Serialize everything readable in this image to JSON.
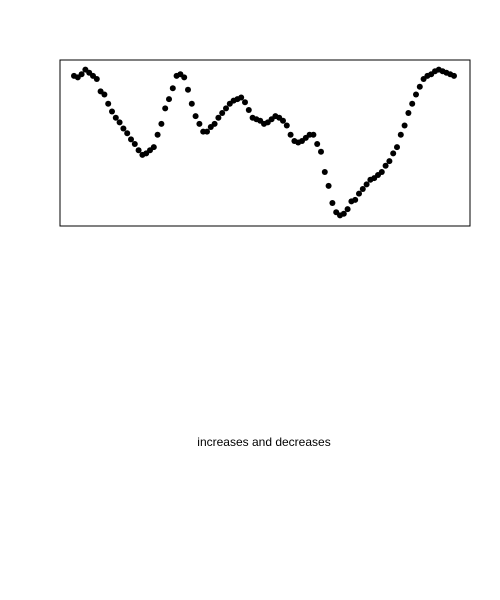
{
  "chart_data": {
    "type": "scatter",
    "title": "",
    "xlabel": "",
    "ylabel": "",
    "grid": false,
    "axes_ticks": false,
    "marker_color": "#000000",
    "frame_color": "#000000",
    "xlim": [
      0,
      100
    ],
    "ylim": [
      0,
      1
    ],
    "series": [
      {
        "x": [
          0,
          1,
          2,
          3,
          4,
          5,
          6,
          7,
          8,
          9,
          10,
          11,
          12,
          13,
          14,
          15,
          16,
          17,
          18,
          19,
          20,
          21,
          22,
          23,
          24,
          25,
          26,
          27,
          28,
          29,
          30,
          31,
          32,
          33,
          34,
          35,
          36,
          37,
          38,
          39,
          40,
          41,
          42,
          43,
          44,
          45,
          46,
          47,
          48,
          49,
          50,
          51,
          52,
          53,
          54,
          55,
          56,
          57,
          58,
          59,
          60,
          61,
          62,
          63,
          64,
          65,
          66,
          67,
          68,
          69,
          70,
          71,
          72,
          73,
          74,
          75,
          76,
          77,
          78,
          79,
          80,
          81,
          82,
          83,
          84,
          85,
          86,
          87,
          88,
          89,
          90,
          91,
          92,
          93,
          94,
          95,
          96,
          97,
          98,
          99,
          100
        ],
        "y": [
          0.93,
          0.92,
          0.94,
          0.97,
          0.95,
          0.93,
          0.91,
          0.83,
          0.81,
          0.75,
          0.7,
          0.66,
          0.63,
          0.59,
          0.56,
          0.52,
          0.49,
          0.45,
          0.42,
          0.43,
          0.45,
          0.47,
          0.55,
          0.62,
          0.72,
          0.78,
          0.85,
          0.93,
          0.94,
          0.92,
          0.84,
          0.75,
          0.67,
          0.62,
          0.57,
          0.57,
          0.6,
          0.62,
          0.66,
          0.69,
          0.72,
          0.75,
          0.77,
          0.78,
          0.79,
          0.76,
          0.71,
          0.66,
          0.65,
          0.64,
          0.62,
          0.63,
          0.65,
          0.67,
          0.66,
          0.64,
          0.61,
          0.55,
          0.51,
          0.5,
          0.51,
          0.53,
          0.55,
          0.55,
          0.49,
          0.44,
          0.31,
          0.22,
          0.11,
          0.05,
          0.03,
          0.04,
          0.07,
          0.12,
          0.13,
          0.17,
          0.2,
          0.23,
          0.26,
          0.27,
          0.29,
          0.31,
          0.35,
          0.38,
          0.43,
          0.47,
          0.55,
          0.61,
          0.69,
          0.75,
          0.81,
          0.86,
          0.91,
          0.93,
          0.94,
          0.96,
          0.97,
          0.96,
          0.95,
          0.94,
          0.93
        ]
      }
    ]
  },
  "caption": "increases and decreases"
}
